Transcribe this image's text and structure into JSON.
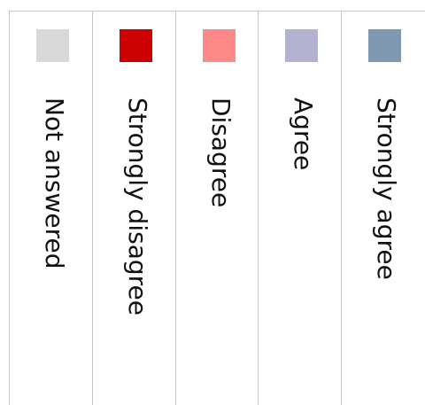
{
  "chart_data": {
    "type": "legend",
    "legend": [
      {
        "label": "Not answered",
        "color": "#d9d9d9"
      },
      {
        "label": "Strongly disagree",
        "color": "#cc0000"
      },
      {
        "label": "Disagree",
        "color": "#ff8888"
      },
      {
        "label": "Agree",
        "color": "#b3b3d1"
      },
      {
        "label": "Strongly agree",
        "color": "#7f99b2"
      }
    ]
  }
}
